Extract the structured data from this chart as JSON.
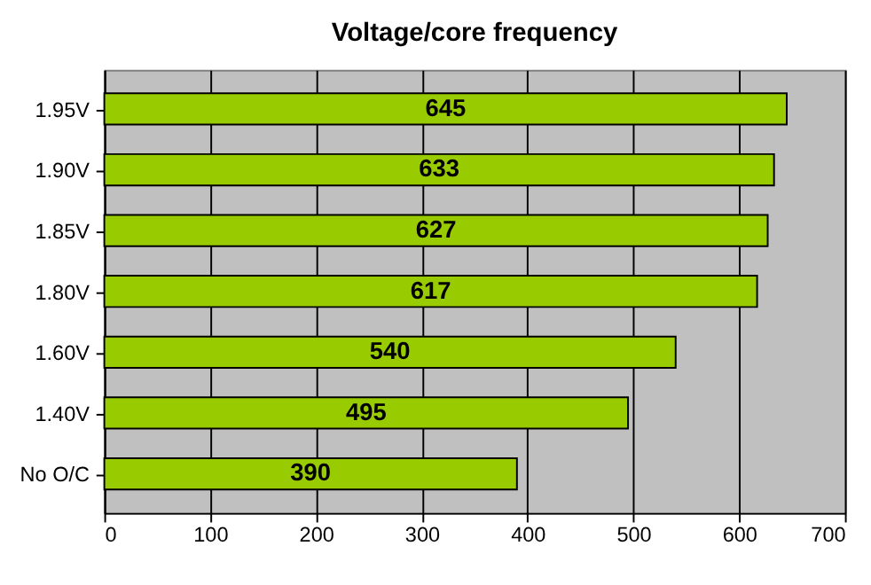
{
  "chart_data": {
    "type": "bar",
    "orientation": "horizontal",
    "title": "Voltage/core frequency",
    "categories": [
      "1.95V",
      "1.90V",
      "1.85V",
      "1.80V",
      "1.60V",
      "1.40V",
      "No O/C"
    ],
    "values": [
      645,
      633,
      627,
      617,
      540,
      495,
      390
    ],
    "color": "#99cc00",
    "xlim": [
      0,
      700
    ],
    "xticks": [
      0,
      100,
      200,
      300,
      400,
      500,
      600,
      700
    ],
    "grid": "x",
    "data_labels": true
  }
}
